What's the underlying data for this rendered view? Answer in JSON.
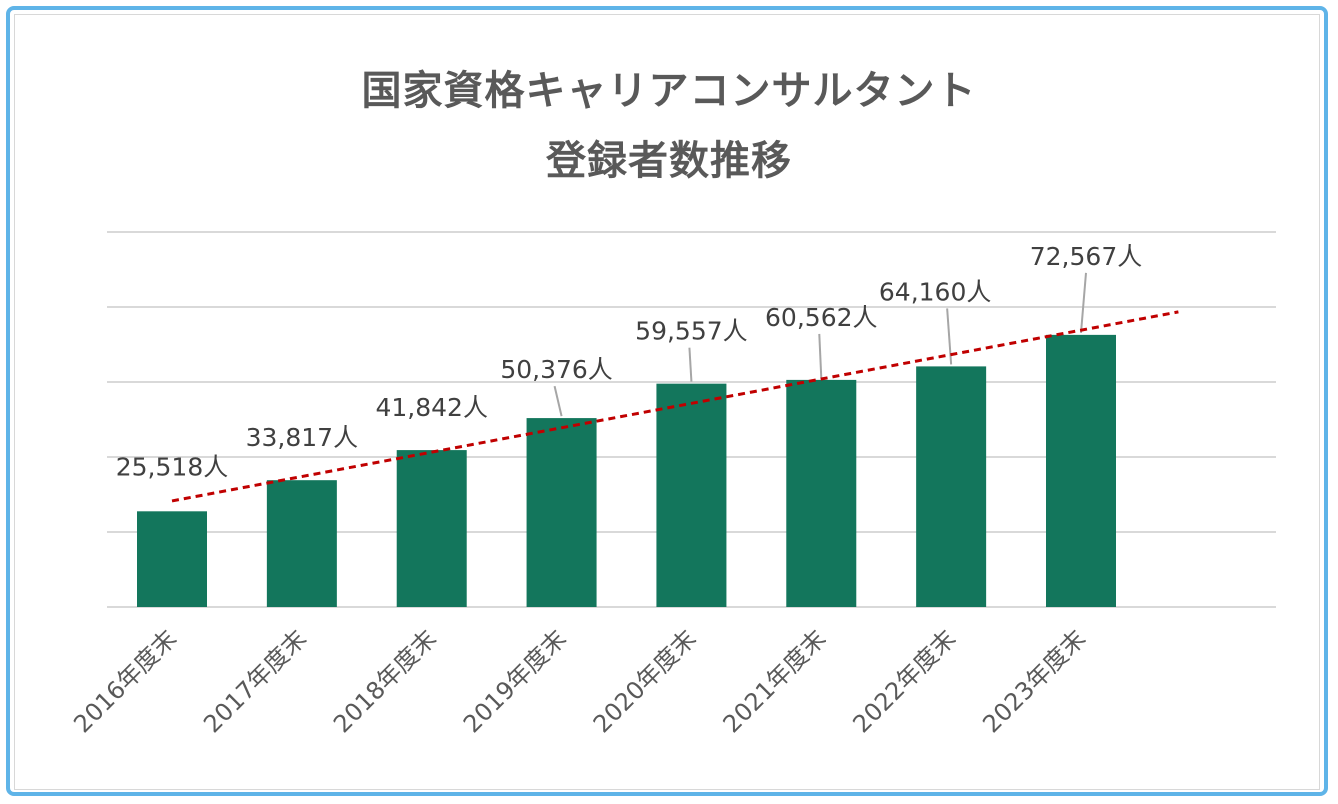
{
  "chart_data": {
    "type": "bar",
    "title_line1": "国家資格キャリアコンサルタント",
    "title_line2": "登録者数推移",
    "categories": [
      "2016年度末",
      "2017年度末",
      "2018年度末",
      "2019年度末",
      "2020年度末",
      "2021年度末",
      "2022年度末",
      "2023年度末"
    ],
    "values": [
      25518,
      33817,
      41842,
      50376,
      59557,
      60562,
      64160,
      72567
    ],
    "data_labels": [
      "25,518人",
      "33,817人",
      "41,842人",
      "50,376人",
      "59,557人",
      "60,562人",
      "64,160人",
      "72,567人"
    ],
    "ylim": [
      0,
      100000
    ],
    "grid": true,
    "legend": "none",
    "trendline": {
      "type": "linear",
      "style": "dashed"
    },
    "colors": {
      "bar": "#13765c",
      "trendline": "#c00000",
      "grid": "#d9d9d9",
      "frame": "#5fb4e8",
      "leader": "#a6a6a6"
    }
  }
}
